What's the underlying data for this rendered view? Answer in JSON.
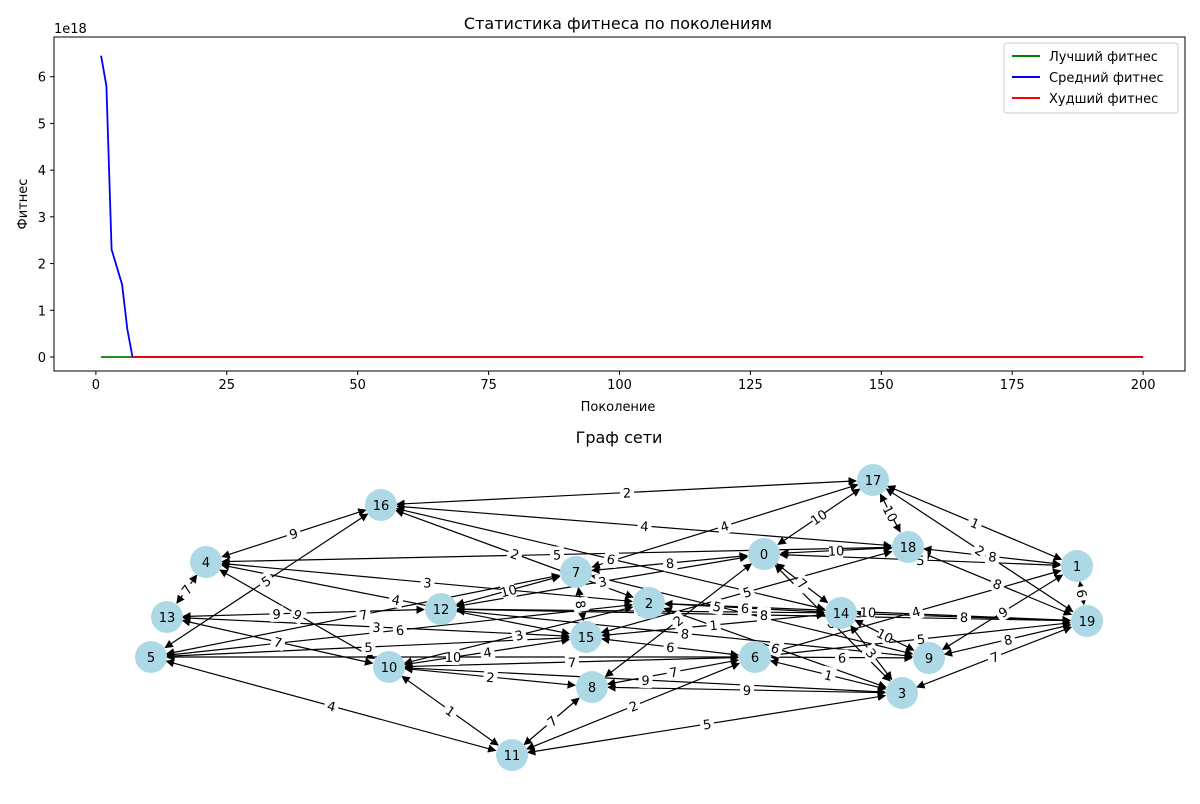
{
  "chart_data": [
    {
      "type": "line",
      "title": "Статистика фитнеса по поколениям",
      "xlabel": "Поколение",
      "ylabel": "Фитнес",
      "offset_label": "1e18",
      "xlim": [
        -8,
        208
      ],
      "ylim": [
        -0.3,
        6.85
      ],
      "xticks": [
        0,
        25,
        50,
        75,
        100,
        125,
        150,
        175,
        200
      ],
      "yticks": [
        0,
        1,
        2,
        3,
        4,
        5,
        6
      ],
      "grid": false,
      "legend_position": "top-right",
      "series": [
        {
          "name": "Лучший фитнес",
          "color": "#008000",
          "x": [
            1,
            7,
            200
          ],
          "y": [
            0,
            0,
            0
          ]
        },
        {
          "name": "Средний фитнес",
          "color": "#0000ff",
          "x": [
            1,
            2,
            3,
            5,
            6,
            7,
            200
          ],
          "y": [
            6.45,
            5.8,
            2.3,
            1.55,
            0.6,
            0,
            0
          ]
        },
        {
          "name": "Худший фитнес",
          "color": "#ff0000",
          "x": [
            7,
            200
          ],
          "y": [
            0,
            0
          ]
        }
      ]
    },
    {
      "type": "graph",
      "title": "Граф сети",
      "node_color": "#add8e6",
      "nodes": [
        "0",
        "1",
        "2",
        "3",
        "4",
        "5",
        "6",
        "7",
        "8",
        "9",
        "10",
        "11",
        "12",
        "13",
        "14",
        "15",
        "16",
        "17",
        "18",
        "19"
      ],
      "edges": [
        {
          "source": "16",
          "target": "17",
          "weight": "2"
        },
        {
          "source": "16",
          "target": "4",
          "weight": "9"
        },
        {
          "source": "16",
          "target": "5",
          "weight": "5"
        },
        {
          "source": "16",
          "target": "2",
          "weight": "2"
        },
        {
          "source": "16",
          "target": "18",
          "weight": "4"
        },
        {
          "source": "16",
          "target": "14",
          "weight": "6"
        },
        {
          "source": "17",
          "target": "18",
          "weight": "10"
        },
        {
          "source": "17",
          "target": "1",
          "weight": "1"
        },
        {
          "source": "17",
          "target": "0",
          "weight": "10"
        },
        {
          "source": "17",
          "target": "19",
          "weight": "2"
        },
        {
          "source": "17",
          "target": "7",
          "weight": "4"
        },
        {
          "source": "18",
          "target": "0",
          "weight": "10"
        },
        {
          "source": "18",
          "target": "1",
          "weight": "8"
        },
        {
          "source": "18",
          "target": "19",
          "weight": "8"
        },
        {
          "source": "4",
          "target": "18",
          "weight": "5"
        },
        {
          "source": "4",
          "target": "13",
          "weight": "7"
        },
        {
          "source": "4",
          "target": "2",
          "weight": "3"
        },
        {
          "source": "4",
          "target": "15",
          "weight": "4"
        },
        {
          "source": "4",
          "target": "10",
          "weight": "9"
        },
        {
          "source": "13",
          "target": "12",
          "weight": "9"
        },
        {
          "source": "13",
          "target": "15",
          "weight": "3"
        },
        {
          "source": "13",
          "target": "10",
          "weight": "7"
        },
        {
          "source": "5",
          "target": "7",
          "weight": "7"
        },
        {
          "source": "5",
          "target": "11",
          "weight": "4"
        },
        {
          "source": "5",
          "target": "2",
          "weight": "6"
        },
        {
          "source": "5",
          "target": "15",
          "weight": "5"
        },
        {
          "source": "5",
          "target": "6",
          "weight": "10"
        },
        {
          "source": "12",
          "target": "7",
          "weight": "10"
        },
        {
          "source": "12",
          "target": "14",
          "weight": "8"
        },
        {
          "source": "12",
          "target": "0",
          "weight": "3"
        },
        {
          "source": "12",
          "target": "19",
          "weight": "8"
        },
        {
          "source": "12",
          "target": "9",
          "weight": "8"
        },
        {
          "source": "10",
          "target": "11",
          "weight": "1"
        },
        {
          "source": "10",
          "target": "8",
          "weight": "2"
        },
        {
          "source": "10",
          "target": "15",
          "weight": "4"
        },
        {
          "source": "10",
          "target": "3",
          "weight": "9"
        },
        {
          "source": "10",
          "target": "2",
          "weight": "3"
        },
        {
          "source": "10",
          "target": "6",
          "weight": "7"
        },
        {
          "source": "11",
          "target": "8",
          "weight": "7"
        },
        {
          "source": "11",
          "target": "3",
          "weight": "5"
        },
        {
          "source": "11",
          "target": "6",
          "weight": "2"
        },
        {
          "source": "7",
          "target": "15",
          "weight": "8"
        },
        {
          "source": "7",
          "target": "0",
          "weight": "8"
        },
        {
          "source": "7",
          "target": "9",
          "weight": "5"
        },
        {
          "source": "2",
          "target": "14",
          "weight": "6"
        },
        {
          "source": "2",
          "target": "3",
          "weight": "6"
        },
        {
          "source": "2",
          "target": "19",
          "weight": "10"
        },
        {
          "source": "15",
          "target": "14",
          "weight": "1"
        },
        {
          "source": "15",
          "target": "6",
          "weight": "6"
        },
        {
          "source": "15",
          "target": "18",
          "weight": "5"
        },
        {
          "source": "0",
          "target": "8",
          "weight": "2"
        },
        {
          "source": "0",
          "target": "14",
          "weight": "7"
        },
        {
          "source": "0",
          "target": "3",
          "weight": "3"
        },
        {
          "source": "0",
          "target": "1",
          "weight": "5"
        },
        {
          "source": "14",
          "target": "9",
          "weight": "10"
        },
        {
          "source": "14",
          "target": "19",
          "weight": "8"
        },
        {
          "source": "14",
          "target": "3",
          "weight": "3"
        },
        {
          "source": "6",
          "target": "9",
          "weight": "6"
        },
        {
          "source": "6",
          "target": "3",
          "weight": "1"
        },
        {
          "source": "6",
          "target": "1",
          "weight": "4"
        },
        {
          "source": "6",
          "target": "19",
          "weight": "5"
        },
        {
          "source": "8",
          "target": "6",
          "weight": "7"
        },
        {
          "source": "8",
          "target": "3",
          "weight": "9"
        },
        {
          "source": "9",
          "target": "1",
          "weight": "9"
        },
        {
          "source": "9",
          "target": "19",
          "weight": "8"
        },
        {
          "source": "3",
          "target": "19",
          "weight": "7"
        },
        {
          "source": "1",
          "target": "19",
          "weight": "6"
        }
      ]
    }
  ]
}
